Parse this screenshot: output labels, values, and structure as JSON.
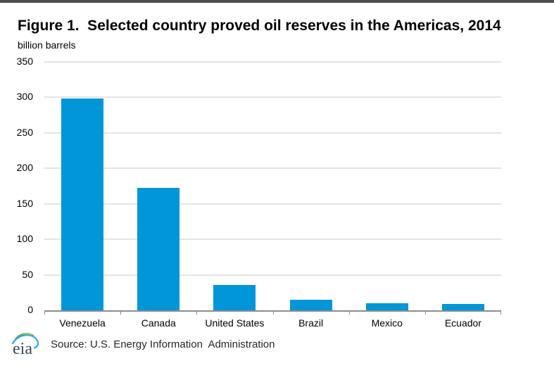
{
  "page": {
    "title": "Figure 1.  Selected country proved oil reserves in the Americas, 2014",
    "units_label": "billion barrels"
  },
  "chart_data": {
    "type": "bar",
    "title": "Figure 1.  Selected country proved oil reserves in the Americas, 2014",
    "ylabel": "billion barrels",
    "xlabel": "",
    "categories": [
      "Venezuela",
      "Canada",
      "United States",
      "Brazil",
      "Mexico",
      "Ecuador"
    ],
    "values": [
      298,
      173,
      36,
      15,
      10,
      9
    ],
    "ylim": [
      0,
      350
    ],
    "ytick_step": 50,
    "grid": "horizontal",
    "legend": "none",
    "bar_color": "#0096D8"
  },
  "footer": {
    "logo_text": "eia",
    "source_text": "Source: U.S. Energy Information  Administration"
  },
  "colors": {
    "bar": "#0096D8",
    "top_band": "#4D4D4D",
    "gridline": "#E4E4E4",
    "axis": "#8C8C8C",
    "logo_text": "#3D4A57",
    "logo_green": "#5BA843",
    "logo_yellow": "#B5CC34",
    "logo_blue": "#2BAAE2"
  }
}
